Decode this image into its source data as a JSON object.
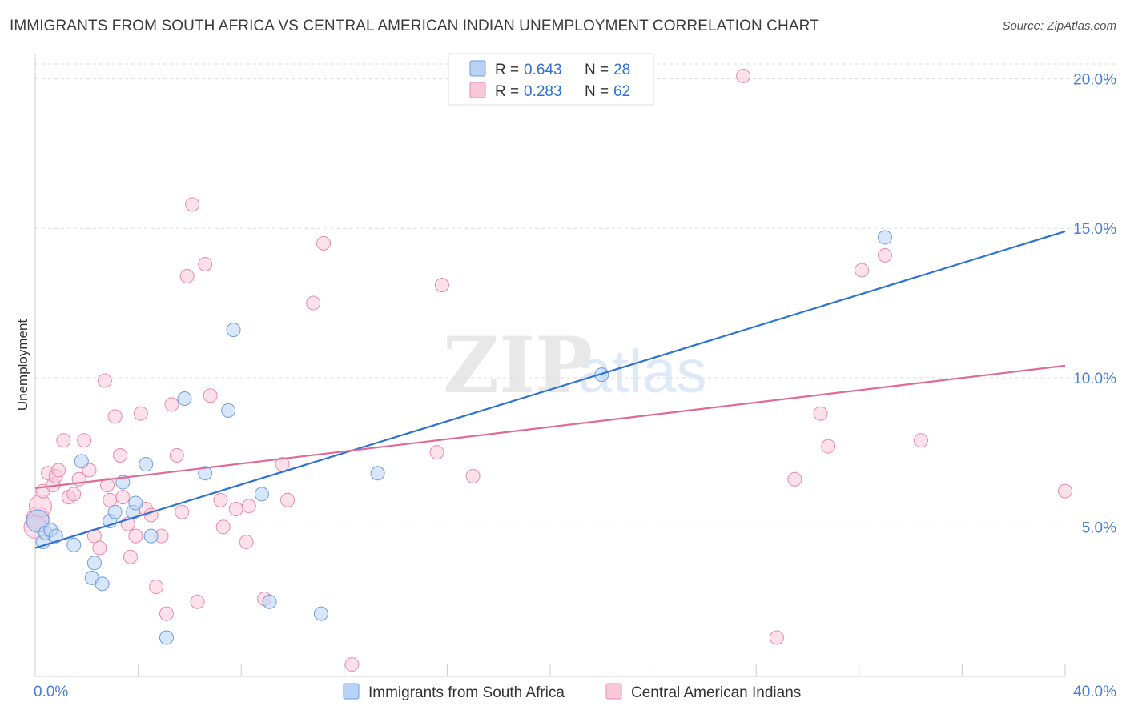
{
  "header": {
    "title": "IMMIGRANTS FROM SOUTH AFRICA VS CENTRAL AMERICAN INDIAN UNEMPLOYMENT CORRELATION CHART",
    "source": "Source: ZipAtlas.com"
  },
  "watermark": {
    "zip": "ZIP",
    "atlas": "atlas"
  },
  "colors": {
    "blue_fill": "#b8d2f5",
    "blue_stroke": "#6f9de0",
    "blue_line": "#2e72d2",
    "pink_fill": "#f9c8d8",
    "pink_stroke": "#e88aab",
    "pink_line": "#e06a95",
    "grid": "#dddddd",
    "tick_text": "#4a7fd4"
  },
  "legend": {
    "series": [
      {
        "r_label": "R =",
        "r_value": "0.643",
        "n_label": "N =",
        "n_value": "28"
      },
      {
        "r_label": "R =",
        "r_value": "0.283",
        "n_label": "N =",
        "n_value": "62"
      }
    ]
  },
  "chart_data": {
    "type": "scatter",
    "title": "IMMIGRANTS FROM SOUTH AFRICA VS CENTRAL AMERICAN INDIAN UNEMPLOYMENT CORRELATION CHART",
    "xlabel": "",
    "ylabel": "Unemployment",
    "xlim": [
      0,
      40
    ],
    "ylim": [
      0,
      20.5
    ],
    "x_tick_labels": [
      "0.0%",
      "40.0%"
    ],
    "y_ticks": [
      5,
      10,
      15,
      20
    ],
    "y_tick_labels": [
      "5.0%",
      "10.0%",
      "15.0%",
      "20.0%"
    ],
    "series": [
      {
        "name": "Immigrants from South Africa",
        "color": "blue",
        "r": 0.643,
        "n": 28,
        "trend": {
          "x": [
            0,
            40
          ],
          "y": [
            4.3,
            14.9
          ]
        },
        "points": [
          [
            0.1,
            5.2
          ],
          [
            0.3,
            4.5
          ],
          [
            0.4,
            4.8
          ],
          [
            0.6,
            4.9
          ],
          [
            0.8,
            4.7
          ],
          [
            1.5,
            4.4
          ],
          [
            1.8,
            7.2
          ],
          [
            2.2,
            3.3
          ],
          [
            2.3,
            3.8
          ],
          [
            2.6,
            3.1
          ],
          [
            2.9,
            5.2
          ],
          [
            3.1,
            5.5
          ],
          [
            3.4,
            6.5
          ],
          [
            3.8,
            5.5
          ],
          [
            3.9,
            5.8
          ],
          [
            4.3,
            7.1
          ],
          [
            4.5,
            4.7
          ],
          [
            5.1,
            1.3
          ],
          [
            5.8,
            9.3
          ],
          [
            6.6,
            6.8
          ],
          [
            7.5,
            8.9
          ],
          [
            7.7,
            11.6
          ],
          [
            8.8,
            6.1
          ],
          [
            9.1,
            2.5
          ],
          [
            11.1,
            2.1
          ],
          [
            13.3,
            6.8
          ],
          [
            22.0,
            10.1
          ],
          [
            33.0,
            14.7
          ]
        ]
      },
      {
        "name": "Central American Indians",
        "color": "pink",
        "r": 0.283,
        "n": 62,
        "trend": {
          "x": [
            0,
            40
          ],
          "y": [
            6.3,
            10.4
          ]
        },
        "points": [
          [
            0.1,
            5.3
          ],
          [
            0.2,
            5.7
          ],
          [
            0.3,
            6.2
          ],
          [
            0.5,
            6.8
          ],
          [
            0.7,
            6.4
          ],
          [
            0.8,
            6.7
          ],
          [
            0.9,
            6.9
          ],
          [
            1.1,
            7.9
          ],
          [
            1.3,
            6.0
          ],
          [
            1.5,
            6.1
          ],
          [
            1.7,
            6.6
          ],
          [
            1.9,
            7.9
          ],
          [
            2.1,
            6.9
          ],
          [
            2.3,
            4.7
          ],
          [
            2.5,
            4.3
          ],
          [
            2.7,
            9.9
          ],
          [
            2.8,
            6.4
          ],
          [
            2.9,
            5.9
          ],
          [
            3.1,
            8.7
          ],
          [
            3.3,
            7.4
          ],
          [
            3.4,
            6.0
          ],
          [
            3.6,
            5.1
          ],
          [
            3.7,
            4.0
          ],
          [
            3.9,
            4.7
          ],
          [
            4.1,
            8.8
          ],
          [
            4.3,
            5.6
          ],
          [
            4.5,
            5.4
          ],
          [
            4.7,
            3.0
          ],
          [
            4.9,
            4.7
          ],
          [
            5.1,
            2.1
          ],
          [
            5.3,
            9.1
          ],
          [
            5.5,
            7.4
          ],
          [
            5.7,
            5.5
          ],
          [
            5.9,
            13.4
          ],
          [
            6.1,
            15.8
          ],
          [
            6.3,
            2.5
          ],
          [
            6.6,
            13.8
          ],
          [
            6.8,
            9.4
          ],
          [
            7.2,
            5.9
          ],
          [
            7.3,
            5.0
          ],
          [
            7.8,
            5.6
          ],
          [
            8.2,
            4.5
          ],
          [
            8.3,
            5.7
          ],
          [
            8.9,
            2.6
          ],
          [
            9.6,
            7.1
          ],
          [
            9.8,
            5.9
          ],
          [
            10.8,
            12.5
          ],
          [
            11.2,
            14.5
          ],
          [
            12.3,
            0.4
          ],
          [
            15.6,
            7.5
          ],
          [
            15.8,
            13.1
          ],
          [
            17.0,
            6.7
          ],
          [
            27.5,
            20.1
          ],
          [
            28.8,
            1.3
          ],
          [
            29.5,
            6.6
          ],
          [
            30.5,
            8.8
          ],
          [
            30.8,
            7.7
          ],
          [
            32.1,
            13.6
          ],
          [
            33.0,
            14.1
          ],
          [
            34.4,
            7.9
          ],
          [
            40.0,
            6.2
          ],
          [
            0.0,
            5.0
          ]
        ]
      }
    ]
  },
  "bottom_legend": {
    "items": [
      {
        "label": "Immigrants from South Africa"
      },
      {
        "label": "Central American Indians"
      }
    ]
  }
}
